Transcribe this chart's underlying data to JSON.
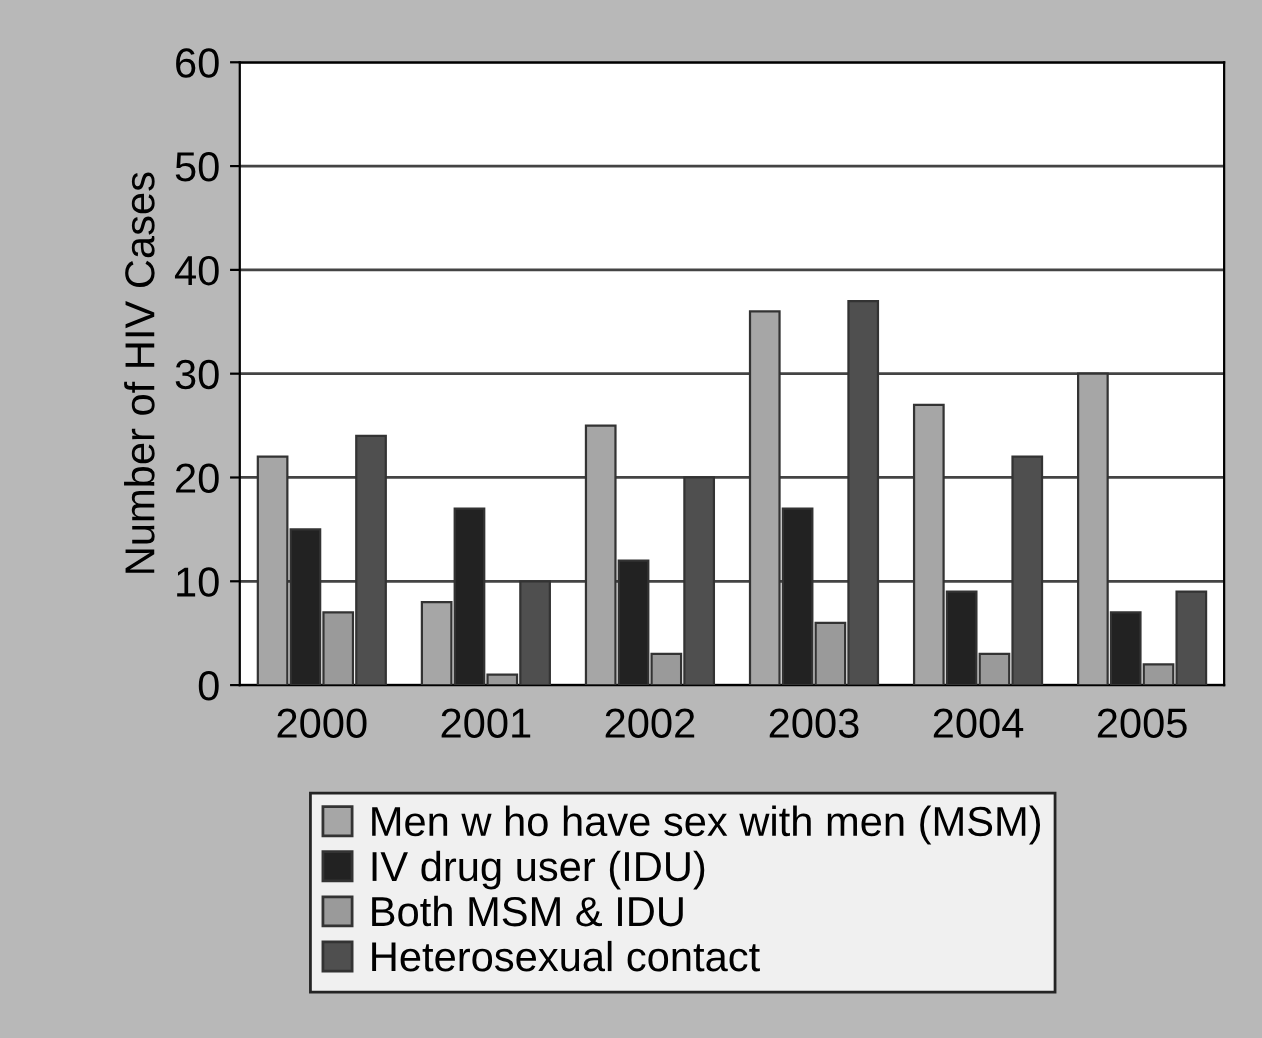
{
  "chart_data": {
    "type": "bar",
    "ylabel": "Number of HIV Cases",
    "categories": [
      "2000",
      "2001",
      "2002",
      "2003",
      "2004",
      "2005"
    ],
    "series": [
      {
        "name": "Men w ho have sex with men (MSM)",
        "color": "#a6a6a6",
        "values": [
          22,
          8,
          25,
          36,
          27,
          30
        ]
      },
      {
        "name": "IV drug user (IDU)",
        "color": "#222222",
        "values": [
          15,
          17,
          12,
          17,
          9,
          7
        ]
      },
      {
        "name": "Both MSM & IDU",
        "color": "#9a9a9a",
        "values": [
          7,
          1,
          3,
          6,
          3,
          2
        ]
      },
      {
        "name": "Heterosexual contact",
        "color": "#4f4f4f",
        "values": [
          24,
          10,
          20,
          37,
          22,
          9
        ]
      }
    ],
    "ylim": [
      0,
      60
    ],
    "yticks": [
      0,
      10,
      20,
      30,
      40,
      50,
      60
    ],
    "grid": "y",
    "legend": "bottom"
  }
}
